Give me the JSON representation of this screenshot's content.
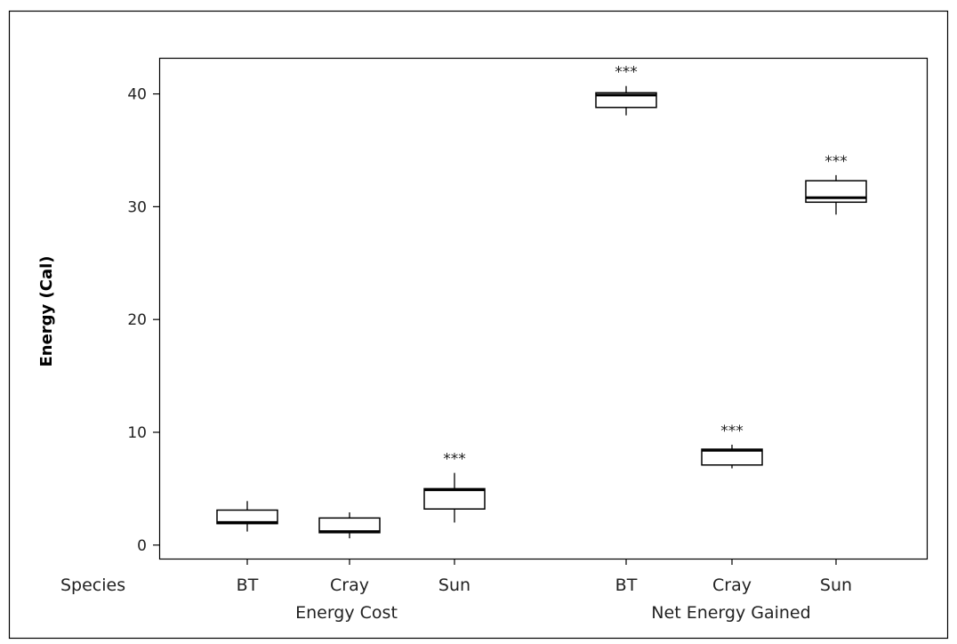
{
  "chart_data": {
    "type": "box",
    "ylabel": "Energy (Cal)",
    "yticks": [
      0,
      10,
      20,
      30,
      40
    ],
    "ylim": [
      -1.2,
      43.2
    ],
    "row_label": "Species",
    "groups": [
      {
        "name": "Energy Cost",
        "categories": [
          "BT",
          "Cray",
          "Sun"
        ]
      },
      {
        "name": "Net Energy Gained",
        "categories": [
          "BT",
          "Cray",
          "Sun"
        ]
      }
    ],
    "boxes": [
      {
        "group": "Energy Cost",
        "category": "BT",
        "min": 1.2,
        "q1": 1.9,
        "median": 2.0,
        "q3": 3.1,
        "max": 3.9,
        "significance": ""
      },
      {
        "group": "Energy Cost",
        "category": "Cray",
        "min": 0.6,
        "q1": 1.1,
        "median": 1.2,
        "q3": 2.4,
        "max": 2.9,
        "significance": ""
      },
      {
        "group": "Energy Cost",
        "category": "Sun",
        "min": 2.0,
        "q1": 3.2,
        "median": 4.9,
        "q3": 5.0,
        "max": 6.4,
        "significance": "***"
      },
      {
        "group": "Net Energy Gained",
        "category": "BT",
        "min": 38.1,
        "q1": 38.8,
        "median": 39.9,
        "q3": 40.1,
        "max": 40.7,
        "significance": "***"
      },
      {
        "group": "Net Energy Gained",
        "category": "Cray",
        "min": 6.8,
        "q1": 7.1,
        "median": 8.4,
        "q3": 8.5,
        "max": 8.9,
        "significance": "***"
      },
      {
        "group": "Net Energy Gained",
        "category": "Sun",
        "min": 29.3,
        "q1": 30.4,
        "median": 30.8,
        "q3": 32.3,
        "max": 32.8,
        "significance": "***"
      }
    ],
    "grid": false,
    "legend": "none"
  }
}
